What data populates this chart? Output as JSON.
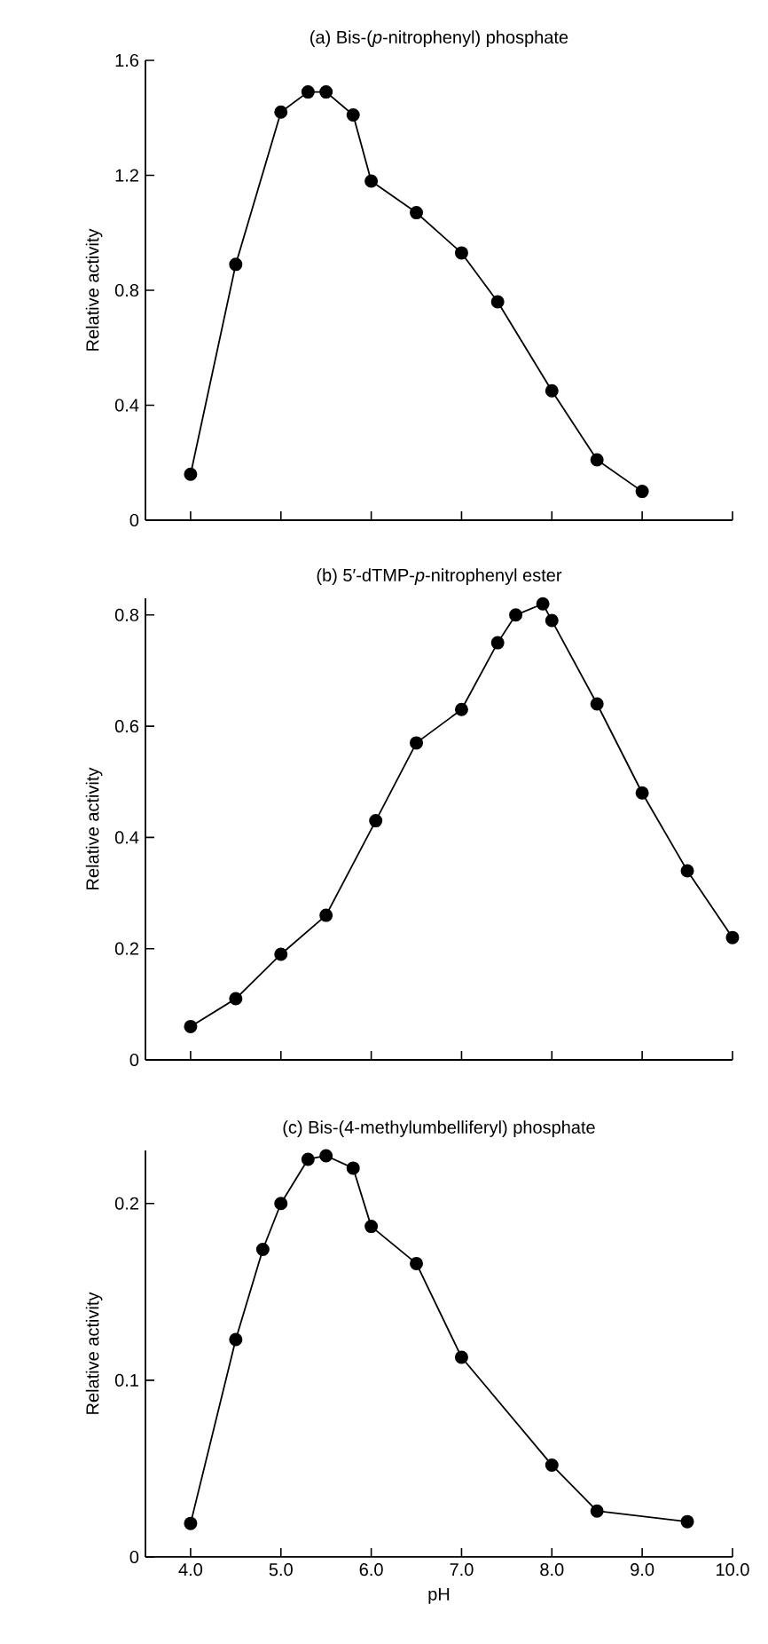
{
  "chart_data": [
    {
      "type": "line",
      "title": "(a) Bis-(*p*-nitrophenyl) phosphate",
      "ylabel": "Relative activity",
      "xlim": [
        3.5,
        10
      ],
      "ylim": [
        0,
        1.6
      ],
      "xticks": [
        4,
        5,
        6,
        7,
        8,
        9,
        10
      ],
      "yticks": [
        {
          "value": 0,
          "label": "0"
        },
        {
          "value": 0.4,
          "label": "0.4"
        },
        {
          "value": 0.8,
          "label": "0.8"
        },
        {
          "value": 1.2,
          "label": "1.2"
        },
        {
          "value": 1.6,
          "label": "1.6"
        }
      ],
      "tick_labels": "y",
      "marker": "circle",
      "line_style": "solid",
      "series": [
        {
          "color": "#000000",
          "x": [
            4.0,
            4.5,
            5.0,
            5.3,
            5.5,
            5.8,
            6.0,
            6.5,
            7.0,
            7.4,
            8.0,
            8.5,
            9.0
          ],
          "values": [
            0.16,
            0.89,
            1.42,
            1.49,
            1.49,
            1.41,
            1.18,
            1.07,
            0.93,
            0.76,
            0.45,
            0.21,
            0.1
          ]
        }
      ]
    },
    {
      "type": "line",
      "title": "(b) 5′-dTMP-*p*-nitrophenyl ester",
      "ylabel": "Relative activity",
      "xlim": [
        3.5,
        10
      ],
      "ylim": [
        0,
        0.83
      ],
      "xticks": [
        4,
        5,
        6,
        7,
        8,
        9,
        10
      ],
      "yticks": [
        {
          "value": 0,
          "label": "0"
        },
        {
          "value": 0.2,
          "label": "0.2"
        },
        {
          "value": 0.4,
          "label": "0.4"
        },
        {
          "value": 0.6,
          "label": "0.6"
        },
        {
          "value": 0.8,
          "label": "0.8"
        }
      ],
      "tick_labels": "y",
      "marker": "circle",
      "line_style": "solid",
      "series": [
        {
          "color": "#000000",
          "x": [
            4.0,
            4.5,
            5.0,
            5.5,
            6.05,
            6.5,
            7.0,
            7.4,
            7.6,
            7.9,
            8.0,
            8.5,
            9.0,
            9.5,
            10.0
          ],
          "values": [
            0.06,
            0.11,
            0.19,
            0.26,
            0.43,
            0.57,
            0.63,
            0.75,
            0.8,
            0.82,
            0.79,
            0.64,
            0.48,
            0.34,
            0.22
          ]
        }
      ]
    },
    {
      "type": "line",
      "title": "(c) Bis-(4-methylumbelliferyl) phosphate",
      "xlabel": "pH",
      "ylabel": "Relative activity",
      "xlim": [
        3.5,
        10
      ],
      "ylim": [
        0,
        0.23
      ],
      "xticks": [
        {
          "value": 4,
          "label": "4.0"
        },
        {
          "value": 5,
          "label": "5.0"
        },
        {
          "value": 6,
          "label": "6.0"
        },
        {
          "value": 7,
          "label": "7.0"
        },
        {
          "value": 8,
          "label": "8.0"
        },
        {
          "value": 9,
          "label": "9.0"
        },
        {
          "value": 10,
          "label": "10.0"
        }
      ],
      "yticks": [
        {
          "value": 0,
          "label": "0"
        },
        {
          "value": 0.1,
          "label": "0.1"
        },
        {
          "value": 0.2,
          "label": "0.2"
        }
      ],
      "marker": "circle",
      "line_style": "solid",
      "series": [
        {
          "color": "#000000",
          "x": [
            4.0,
            4.5,
            4.8,
            5.0,
            5.3,
            5.5,
            5.8,
            6.0,
            6.5,
            7.0,
            8.0,
            8.5,
            9.5
          ],
          "values": [
            0.019,
            0.123,
            0.174,
            0.2,
            0.225,
            0.227,
            0.22,
            0.187,
            0.166,
            0.113,
            0.052,
            0.026,
            0.02
          ]
        }
      ]
    }
  ]
}
